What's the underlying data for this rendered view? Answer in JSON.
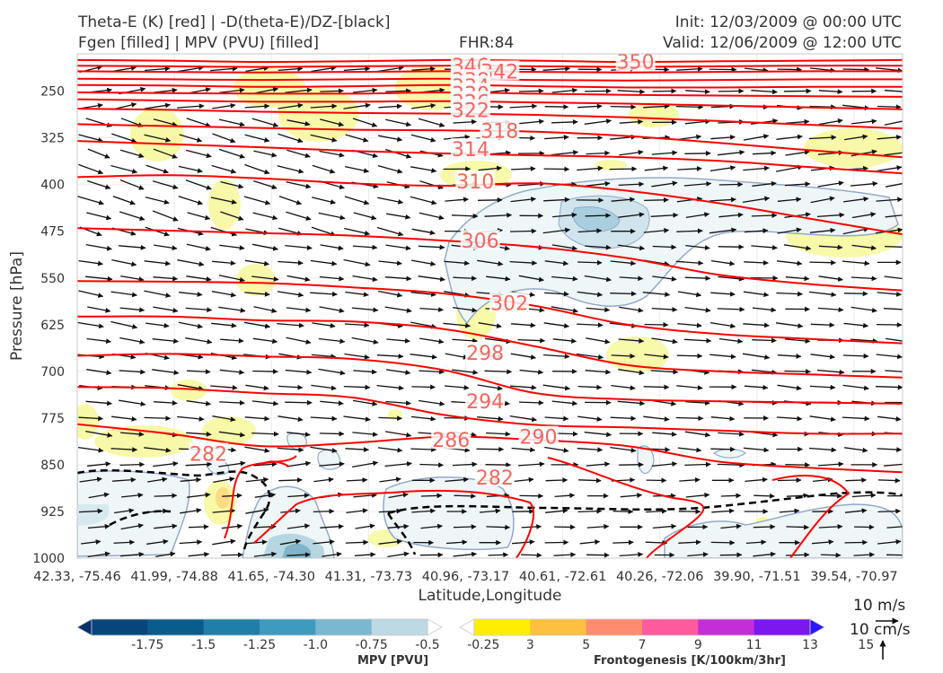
{
  "header": {
    "title_line1": "Theta-E (K) [red] | -D(theta-E)/DZ-[black]",
    "title_line2": "Fgen [filled] | MPV (PVU) [filled]",
    "fhr": "FHR:84",
    "init": "Init: 12/03/2009 @ 00:00 UTC",
    "valid": "Valid: 12/06/2009 @ 12:00 UTC"
  },
  "colors": {
    "theta_e": "#ff0000",
    "theta_e_label": "#f0665f",
    "ddz": "#000000",
    "arrows": "#111111",
    "mpv_outline": "#94a8c8",
    "fgen_light": "#f6f99a"
  },
  "chart_data": {
    "type": "cross-section",
    "ylabel": "Pressure [hPa]",
    "xlabel": "Latitude,Longitude",
    "y_ticks": [
      250,
      325,
      400,
      475,
      550,
      625,
      700,
      775,
      850,
      925,
      1000
    ],
    "y_range": [
      1000,
      190
    ],
    "x_ticks": [
      "42.33, -75.46",
      "41.99, -74.88",
      "41.65, -74.30",
      "41.31, -73.73",
      "40.96, -73.17",
      "40.61, -72.61",
      "40.26, -72.06",
      "39.90, -71.51",
      "39.54, -70.97"
    ],
    "grid": true,
    "theta_e_contours": [
      {
        "value": 350,
        "p": [
          200,
          201,
          203,
          202,
          200,
          201,
          203,
          202,
          201,
          200
        ]
      },
      {
        "value": 346,
        "p": [
          209,
          210,
          211,
          210,
          209,
          210,
          211,
          210,
          209,
          209
        ]
      },
      {
        "value": 342,
        "p": [
          218,
          219,
          220,
          219,
          218,
          219,
          220,
          219,
          218,
          218
        ]
      },
      {
        "value": 338,
        "p": [
          230,
          231,
          232,
          231,
          230,
          232,
          233,
          232,
          231,
          231
        ]
      },
      {
        "value": 334,
        "p": [
          240,
          241,
          243,
          242,
          240,
          242,
          244,
          244,
          243,
          243
        ]
      },
      {
        "value": 330,
        "p": [
          252,
          253,
          254,
          254,
          252,
          254,
          256,
          257,
          258,
          259
        ]
      },
      {
        "value": 326,
        "p": [
          263,
          265,
          267,
          267,
          266,
          268,
          270,
          273,
          276,
          279
        ]
      },
      {
        "value": 322,
        "p": [
          278,
          280,
          283,
          285,
          286,
          288,
          292,
          298,
          304,
          310
        ]
      },
      {
        "value": 318,
        "p": [
          303,
          306,
          309,
          312,
          313,
          315,
          322,
          333,
          345,
          356
        ]
      },
      {
        "value": 314,
        "p": [
          330,
          335,
          340,
          346,
          350,
          353,
          356,
          362,
          372,
          382
        ]
      },
      {
        "value": 310,
        "p": [
          388,
          385,
          390,
          398,
          402,
          398,
          410,
          430,
          455,
          480
        ]
      },
      {
        "value": 306,
        "p": [
          470,
          474,
          478,
          482,
          490,
          500,
          518,
          545,
          560,
          570
        ]
      },
      {
        "value": 302,
        "p": [
          555,
          556,
          558,
          565,
          575,
          595,
          625,
          640,
          648,
          655
        ]
      },
      {
        "value": 298,
        "p": [
          612,
          612,
          618,
          620,
          632,
          660,
          690,
          700,
          705,
          710
        ]
      },
      {
        "value": 294,
        "p": [
          675,
          672,
          676,
          680,
          698,
          735,
          745,
          748,
          750,
          752
        ]
      },
      {
        "value": 290,
        "p": [
          725,
          727,
          735,
          742,
          770,
          786,
          790,
          795,
          800,
          800
        ]
      },
      {
        "value": 286,
        "p": [
          785,
          800,
          820,
          815,
          805,
          810,
          820,
          845,
          855,
          862
        ]
      }
    ],
    "theta_e_labels": [
      {
        "text": "350",
        "x": 5.75,
        "p": 202
      },
      {
        "text": "346",
        "x": 4.05,
        "p": 209
      },
      {
        "text": "342",
        "x": 4.35,
        "p": 218
      },
      {
        "text": "338",
        "x": 4.05,
        "p": 232
      },
      {
        "text": "334",
        "x": 4.05,
        "p": 242
      },
      {
        "text": "330",
        "x": 4.05,
        "p": 254
      },
      {
        "text": "326",
        "x": 4.05,
        "p": 267
      },
      {
        "text": "322",
        "x": 4.05,
        "p": 280
      },
      {
        "text": "318",
        "x": 4.35,
        "p": 313
      },
      {
        "text": "314",
        "x": 4.05,
        "p": 343
      },
      {
        "text": "310",
        "x": 4.1,
        "p": 395
      },
      {
        "text": "306",
        "x": 4.15,
        "p": 490
      },
      {
        "text": "302",
        "x": 4.45,
        "p": 590
      },
      {
        "text": "298",
        "x": 4.2,
        "p": 670
      },
      {
        "text": "294",
        "x": 4.2,
        "p": 748
      },
      {
        "text": "290",
        "x": 4.75,
        "p": 805
      },
      {
        "text": "286",
        "x": 3.85,
        "p": 810
      },
      {
        "text": "282",
        "x": 1.35,
        "p": 832
      },
      {
        "text": "282",
        "x": 4.3,
        "p": 870
      }
    ],
    "colorbar_mpv": {
      "label": "MPV [PVU]",
      "ticks": [
        "-1.75",
        "-1.5",
        "-1.25",
        "-1.0",
        "-0.75",
        "-0.5",
        "-0.25"
      ],
      "colors": [
        "#08306b",
        "#08457a",
        "#0a5c8c",
        "#1f7fa8",
        "#3f9ac0",
        "#7ab8d2",
        "#bcd9e4",
        "#ffffff"
      ]
    },
    "colorbar_fgen": {
      "label": "Frontogenesis [K/100km/3hr]",
      "ticks": [
        "3",
        "5",
        "7",
        "9",
        "11",
        "13",
        "15"
      ],
      "colors": [
        "#ffffff",
        "#ffee00",
        "#ffbf40",
        "#ff8c6e",
        "#ff5a9e",
        "#c42ed6",
        "#7a18ee",
        "#2a16ff"
      ]
    },
    "wind_scale": {
      "horizontal": "10 m/s",
      "vertical": "10 cm/s"
    }
  }
}
